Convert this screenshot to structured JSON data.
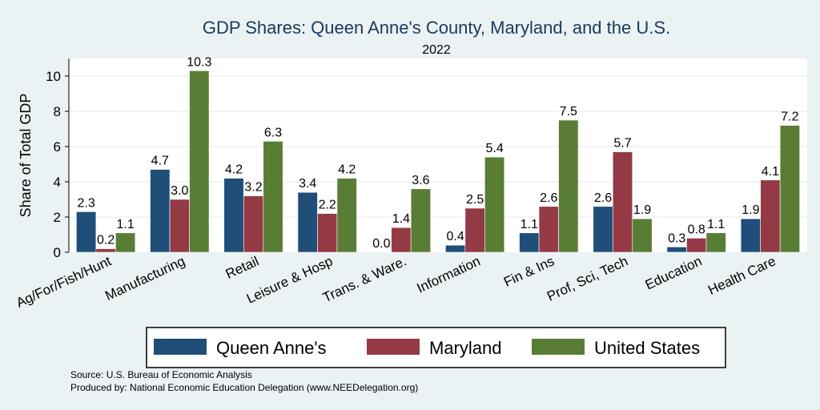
{
  "chart_data": {
    "type": "bar",
    "title": "GDP Shares: Queen Anne's County, Maryland, and the U.S.",
    "subtitle": "2022",
    "ylabel": "Share of Total GDP",
    "xlabel": "",
    "ylim": [
      0,
      11
    ],
    "yticks": [
      0,
      2,
      4,
      6,
      8,
      10
    ],
    "grid": true,
    "legend_position": "bottom",
    "categories": [
      "Ag/For/Fish/Hunt",
      "Manufacturing",
      "Retail",
      "Leisure & Hosp",
      "Trans. & Ware.",
      "Information",
      "Fin & Ins",
      "Prof, Sci, Tech",
      "Education",
      "Health Care"
    ],
    "series": [
      {
        "name": "Queen Anne's",
        "color": "#1f4e79",
        "values": [
          2.3,
          4.7,
          4.2,
          3.4,
          0.0,
          0.4,
          1.1,
          2.6,
          0.3,
          1.9
        ],
        "labels": [
          "2.3",
          "4.7",
          "4.2",
          "3.4",
          "0.0",
          "0.4",
          "1.1",
          "2.6",
          "0.3",
          "1.9"
        ]
      },
      {
        "name": "Maryland",
        "color": "#943a45",
        "values": [
          0.2,
          3.0,
          3.2,
          2.2,
          1.4,
          2.5,
          2.6,
          5.7,
          0.8,
          4.1
        ],
        "labels": [
          "0.2",
          "3.0",
          "3.2",
          "2.2",
          "1.4",
          "2.5",
          "2.6",
          "5.7",
          "0.8",
          "4.1"
        ]
      },
      {
        "name": "United States",
        "color": "#5a7d35",
        "values": [
          1.1,
          10.3,
          6.3,
          4.2,
          3.6,
          5.4,
          7.5,
          1.9,
          1.1,
          7.2
        ],
        "labels": [
          "1.1",
          "10.3",
          "6.3",
          "4.2",
          "3.6",
          "5.4",
          "7.5",
          "1.9",
          "1.1",
          "7.2"
        ]
      }
    ]
  },
  "footer": {
    "source": "Source: U.S. Bureau of Economic Analysis",
    "produced": "Produced by: National Economic Education Delegation (www.NEEDelegation.org)"
  }
}
